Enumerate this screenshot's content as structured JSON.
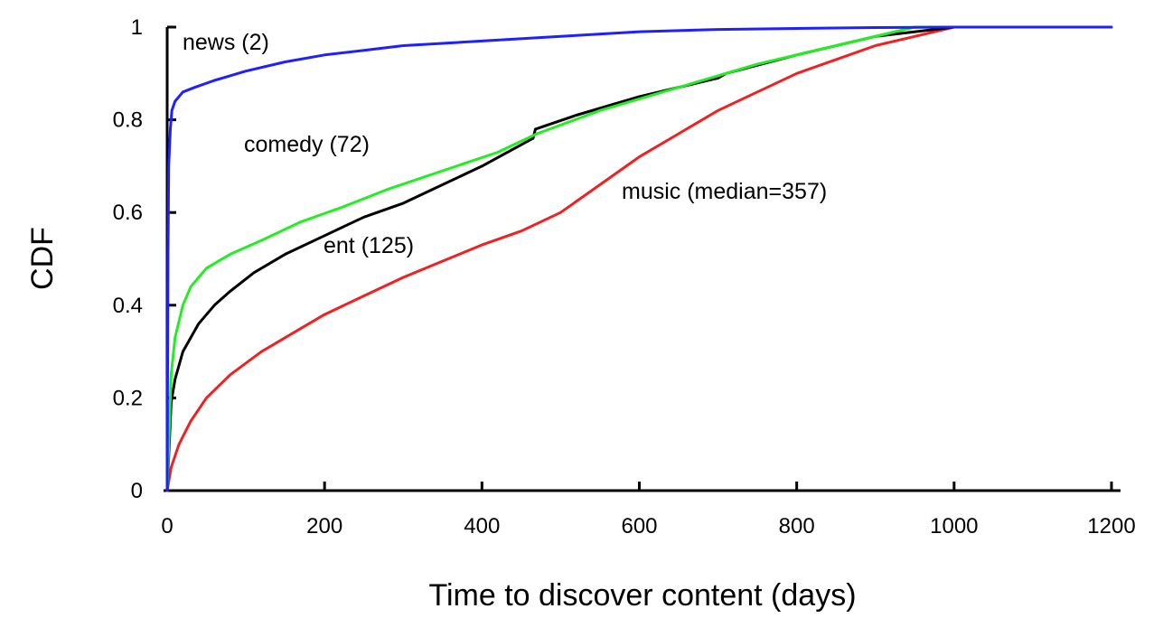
{
  "chart_data": {
    "type": "line",
    "xlabel": "Time to discover content (days)",
    "ylabel": "CDF",
    "xlim": [
      0,
      1200
    ],
    "ylim": [
      0,
      1
    ],
    "xticks": [
      "0",
      "200",
      "400",
      "600",
      "800",
      "1000",
      "1200"
    ],
    "yticks": [
      "0",
      "0.2",
      "0.4",
      "0.6",
      "0.8",
      "1"
    ],
    "grid": false,
    "legend": "none",
    "series": [
      {
        "key": "news",
        "color": "#1f1fff",
        "x": [
          0,
          1,
          2,
          4,
          6,
          10,
          20,
          35,
          60,
          100,
          150,
          200,
          250,
          300,
          400,
          500,
          600,
          700,
          800,
          900,
          1000,
          1100,
          1200
        ],
        "y": [
          0,
          0.5,
          0.7,
          0.78,
          0.82,
          0.84,
          0.86,
          0.87,
          0.885,
          0.905,
          0.925,
          0.94,
          0.95,
          0.96,
          0.97,
          0.98,
          0.99,
          0.995,
          0.997,
          0.999,
          1.0,
          1.0,
          1.0
        ]
      },
      {
        "key": "comedy",
        "color": "#22ee22",
        "x": [
          0,
          5,
          10,
          20,
          30,
          50,
          80,
          120,
          170,
          220,
          280,
          350,
          420,
          470,
          550,
          650,
          750,
          850,
          950,
          1000
        ],
        "y": [
          0,
          0.25,
          0.33,
          0.4,
          0.44,
          0.48,
          0.51,
          0.54,
          0.58,
          0.61,
          0.65,
          0.69,
          0.73,
          0.77,
          0.82,
          0.87,
          0.92,
          0.96,
          1.0,
          1.0
        ]
      },
      {
        "key": "ent",
        "color": "#000000",
        "x": [
          0,
          5,
          10,
          20,
          40,
          60,
          80,
          110,
          150,
          200,
          250,
          300,
          350,
          400,
          465,
          468,
          520,
          600,
          700,
          710,
          800,
          900,
          1000
        ],
        "y": [
          0,
          0.19,
          0.24,
          0.3,
          0.36,
          0.4,
          0.43,
          0.47,
          0.51,
          0.55,
          0.59,
          0.62,
          0.66,
          0.7,
          0.76,
          0.78,
          0.81,
          0.85,
          0.89,
          0.9,
          0.94,
          0.98,
          1.0
        ]
      },
      {
        "key": "music",
        "color": "#ee2222",
        "x": [
          0,
          5,
          15,
          30,
          50,
          80,
          120,
          160,
          200,
          250,
          300,
          357,
          400,
          450,
          500,
          550,
          600,
          650,
          700,
          750,
          800,
          850,
          900,
          950,
          1000,
          1050,
          1090
        ],
        "y": [
          0,
          0.05,
          0.1,
          0.15,
          0.2,
          0.25,
          0.3,
          0.34,
          0.38,
          0.42,
          0.46,
          0.5,
          0.53,
          0.56,
          0.6,
          0.66,
          0.72,
          0.77,
          0.82,
          0.86,
          0.9,
          0.93,
          0.96,
          0.98,
          1.0,
          1.0,
          1.0
        ]
      }
    ],
    "annotations": {
      "news": "news (2)",
      "comedy": "comedy (72)",
      "ent": "ent (125)",
      "music": "music (median=357)"
    }
  }
}
